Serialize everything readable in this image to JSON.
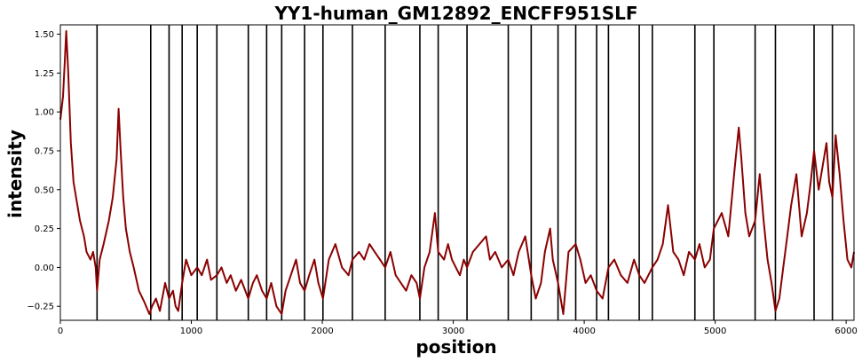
{
  "chart_data": {
    "type": "line",
    "title": "YY1-human_GM12892_ENCFF951SLF",
    "xlabel": "position",
    "ylabel": "intensity",
    "xlim": [
      0,
      6060
    ],
    "ylim": [
      -0.34,
      1.56
    ],
    "xticks": [
      0,
      1000,
      2000,
      3000,
      4000,
      5000,
      6000
    ],
    "yticks": [
      -0.25,
      0.0,
      0.25,
      0.5,
      0.75,
      1.0,
      1.25,
      1.5
    ],
    "xtick_labels": [
      "0",
      "1000",
      "2000",
      "3000",
      "4000",
      "5000",
      "6000"
    ],
    "ytick_labels": [
      "−0.25",
      "0.00",
      "0.25",
      "0.50",
      "0.75",
      "1.00",
      "1.25",
      "1.50"
    ],
    "grid": false,
    "line_color": "#8b0000",
    "vline_color": "#000000",
    "vlines": [
      280,
      690,
      830,
      930,
      1045,
      1195,
      1435,
      1575,
      1690,
      1865,
      2005,
      2230,
      2480,
      2745,
      2885,
      3105,
      3420,
      3595,
      3800,
      3935,
      4095,
      4185,
      4420,
      4520,
      4845,
      4990,
      5305,
      5460,
      5755,
      5895
    ],
    "series": [
      {
        "x": [
          0,
          20,
          35,
          45,
          60,
          80,
          100,
          120,
          150,
          180,
          200,
          230,
          250,
          270,
          280,
          300,
          330,
          370,
          400,
          430,
          445,
          460,
          480,
          500,
          530,
          560,
          600,
          640,
          680,
          700,
          730,
          760,
          800,
          830,
          860,
          880,
          900,
          930,
          960,
          1000,
          1045,
          1080,
          1120,
          1150,
          1195,
          1230,
          1270,
          1300,
          1340,
          1380,
          1435,
          1470,
          1500,
          1540,
          1575,
          1610,
          1650,
          1690,
          1720,
          1760,
          1800,
          1830,
          1865,
          1900,
          1940,
          1970,
          2005,
          2050,
          2100,
          2150,
          2200,
          2230,
          2280,
          2320,
          2360,
          2400,
          2440,
          2480,
          2520,
          2560,
          2600,
          2640,
          2680,
          2720,
          2745,
          2780,
          2820,
          2860,
          2885,
          2930,
          2960,
          2990,
          3020,
          3050,
          3080,
          3105,
          3150,
          3200,
          3250,
          3280,
          3320,
          3370,
          3420,
          3460,
          3500,
          3550,
          3595,
          3630,
          3670,
          3700,
          3740,
          3760,
          3800,
          3840,
          3880,
          3935,
          3970,
          4010,
          4050,
          4095,
          4140,
          4185,
          4230,
          4280,
          4330,
          4380,
          4420,
          4460,
          4520,
          4560,
          4600,
          4640,
          4680,
          4720,
          4760,
          4800,
          4845,
          4880,
          4920,
          4960,
          4990,
          5050,
          5100,
          5150,
          5180,
          5200,
          5230,
          5260,
          5305,
          5340,
          5370,
          5400,
          5430,
          5460,
          5490,
          5520,
          5550,
          5580,
          5620,
          5660,
          5700,
          5730,
          5755,
          5790,
          5820,
          5850,
          5870,
          5895,
          5920,
          5950,
          5980,
          6010,
          6040,
          6060
        ],
        "y": [
          0.95,
          1.1,
          1.35,
          1.52,
          1.25,
          0.8,
          0.55,
          0.45,
          0.3,
          0.2,
          0.1,
          0.05,
          0.1,
          0.0,
          -0.15,
          0.05,
          0.15,
          0.3,
          0.45,
          0.7,
          1.02,
          0.75,
          0.45,
          0.25,
          0.1,
          0.0,
          -0.15,
          -0.22,
          -0.3,
          -0.25,
          -0.2,
          -0.28,
          -0.1,
          -0.2,
          -0.15,
          -0.25,
          -0.28,
          -0.1,
          0.05,
          -0.05,
          0.0,
          -0.05,
          0.05,
          -0.08,
          -0.05,
          0.0,
          -0.1,
          -0.05,
          -0.15,
          -0.08,
          -0.2,
          -0.1,
          -0.05,
          -0.15,
          -0.2,
          -0.1,
          -0.25,
          -0.3,
          -0.15,
          -0.05,
          0.05,
          -0.1,
          -0.15,
          -0.05,
          0.05,
          -0.1,
          -0.2,
          0.05,
          0.15,
          0.0,
          -0.05,
          0.05,
          0.1,
          0.05,
          0.15,
          0.1,
          0.05,
          0.0,
          0.1,
          -0.05,
          -0.1,
          -0.15,
          -0.05,
          -0.1,
          -0.2,
          0.0,
          0.1,
          0.35,
          0.1,
          0.05,
          0.15,
          0.05,
          0.0,
          -0.05,
          0.05,
          0.0,
          0.1,
          0.15,
          0.2,
          0.05,
          0.1,
          0.0,
          0.05,
          -0.05,
          0.1,
          0.2,
          -0.05,
          -0.2,
          -0.1,
          0.1,
          0.25,
          0.05,
          -0.1,
          -0.3,
          0.1,
          0.15,
          0.05,
          -0.1,
          -0.05,
          -0.15,
          -0.2,
          0.0,
          0.05,
          -0.05,
          -0.1,
          0.05,
          -0.05,
          -0.1,
          0.0,
          0.05,
          0.15,
          0.4,
          0.1,
          0.05,
          -0.05,
          0.1,
          0.05,
          0.15,
          0.0,
          0.05,
          0.25,
          0.35,
          0.2,
          0.65,
          0.9,
          0.7,
          0.35,
          0.2,
          0.3,
          0.6,
          0.3,
          0.05,
          -0.1,
          -0.28,
          -0.2,
          0.0,
          0.2,
          0.4,
          0.6,
          0.2,
          0.35,
          0.55,
          0.75,
          0.5,
          0.65,
          0.8,
          0.55,
          0.45,
          0.85,
          0.6,
          0.3,
          0.05,
          0.0,
          0.1
        ]
      }
    ]
  }
}
